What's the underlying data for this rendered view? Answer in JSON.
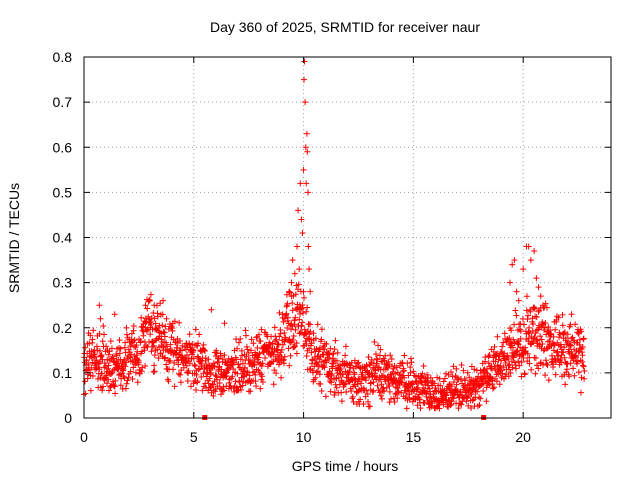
{
  "chart_data": {
    "type": "scatter",
    "title": "Day 360 of 2025, SRMTID for receiver naur",
    "xlabel": "GPS time / hours",
    "ylabel": "SRMTID / TECUs",
    "xlim": [
      0,
      24
    ],
    "ylim": [
      0,
      0.8
    ],
    "x_ticks": [
      0,
      5,
      10,
      15,
      20
    ],
    "x_tick_labels": [
      "0",
      "5",
      "10",
      "15",
      "20"
    ],
    "y_ticks": [
      0,
      0.1,
      0.2,
      0.3,
      0.4,
      0.5,
      0.6,
      0.7,
      0.8
    ],
    "y_tick_labels": [
      "0",
      "0.1",
      "0.2",
      "0.3",
      "0.4",
      "0.5",
      "0.6",
      "0.7",
      "0.8"
    ],
    "grid": true,
    "marker": "+",
    "color": "#ff0000",
    "profile_x": [
      0,
      0.5,
      1,
      1.5,
      2,
      2.5,
      3,
      3.5,
      4,
      4.5,
      5,
      5.5,
      6,
      6.5,
      7,
      7.5,
      8,
      8.5,
      9,
      9.5,
      10,
      10.5,
      11,
      11.5,
      12,
      12.5,
      13,
      13.5,
      14,
      14.5,
      15,
      15.5,
      16,
      16.5,
      17,
      17.5,
      18,
      18.5,
      19,
      19.5,
      20,
      20.5,
      21,
      21.5,
      22,
      22.5,
      22.8
    ],
    "profile_y": [
      0.12,
      0.13,
      0.12,
      0.11,
      0.12,
      0.15,
      0.19,
      0.18,
      0.15,
      0.14,
      0.13,
      0.11,
      0.1,
      0.1,
      0.11,
      0.12,
      0.13,
      0.14,
      0.17,
      0.22,
      0.2,
      0.14,
      0.12,
      0.1,
      0.09,
      0.08,
      0.09,
      0.1,
      0.09,
      0.08,
      0.07,
      0.06,
      0.05,
      0.05,
      0.06,
      0.06,
      0.07,
      0.1,
      0.13,
      0.16,
      0.17,
      0.18,
      0.17,
      0.16,
      0.15,
      0.14,
      0.14
    ],
    "spikes": [
      {
        "x": 9.15,
        "y": 0.22
      },
      {
        "x": 9.25,
        "y": 0.25
      },
      {
        "x": 9.35,
        "y": 0.28
      },
      {
        "x": 9.45,
        "y": 0.3
      },
      {
        "x": 9.5,
        "y": 0.35
      },
      {
        "x": 9.6,
        "y": 0.32
      },
      {
        "x": 9.7,
        "y": 0.38
      },
      {
        "x": 9.75,
        "y": 0.46
      },
      {
        "x": 9.8,
        "y": 0.33
      },
      {
        "x": 9.85,
        "y": 0.52
      },
      {
        "x": 9.9,
        "y": 0.44
      },
      {
        "x": 9.95,
        "y": 0.41
      },
      {
        "x": 10.0,
        "y": 0.55
      },
      {
        "x": 10.02,
        "y": 0.75
      },
      {
        "x": 10.04,
        "y": 0.79
      },
      {
        "x": 10.07,
        "y": 0.7
      },
      {
        "x": 10.1,
        "y": 0.6
      },
      {
        "x": 10.12,
        "y": 0.52
      },
      {
        "x": 10.15,
        "y": 0.63
      },
      {
        "x": 10.17,
        "y": 0.59
      },
      {
        "x": 10.2,
        "y": 0.5
      },
      {
        "x": 10.22,
        "y": 0.38
      },
      {
        "x": 10.25,
        "y": 0.33
      },
      {
        "x": 10.3,
        "y": 0.28
      },
      {
        "x": 2.8,
        "y": 0.25
      },
      {
        "x": 3.0,
        "y": 0.26
      },
      {
        "x": 3.2,
        "y": 0.25
      },
      {
        "x": 3.6,
        "y": 0.26
      },
      {
        "x": 0.7,
        "y": 0.25
      },
      {
        "x": 0.75,
        "y": 0.22
      },
      {
        "x": 1.4,
        "y": 0.23
      },
      {
        "x": 5.8,
        "y": 0.24
      },
      {
        "x": 6.4,
        "y": 0.21
      },
      {
        "x": 19.4,
        "y": 0.3
      },
      {
        "x": 19.5,
        "y": 0.34
      },
      {
        "x": 19.6,
        "y": 0.35
      },
      {
        "x": 19.7,
        "y": 0.28
      },
      {
        "x": 19.8,
        "y": 0.26
      },
      {
        "x": 20.0,
        "y": 0.33
      },
      {
        "x": 20.15,
        "y": 0.38
      },
      {
        "x": 20.25,
        "y": 0.38
      },
      {
        "x": 20.35,
        "y": 0.35
      },
      {
        "x": 20.5,
        "y": 0.37
      },
      {
        "x": 20.6,
        "y": 0.31
      },
      {
        "x": 20.7,
        "y": 0.29
      },
      {
        "x": 20.8,
        "y": 0.27
      },
      {
        "x": 20.9,
        "y": 0.25
      },
      {
        "x": 22.2,
        "y": 0.23
      }
    ],
    "zero_markers": [
      {
        "x": 5.5,
        "y": 0.0
      },
      {
        "x": 18.2,
        "y": 0.0
      }
    ]
  }
}
